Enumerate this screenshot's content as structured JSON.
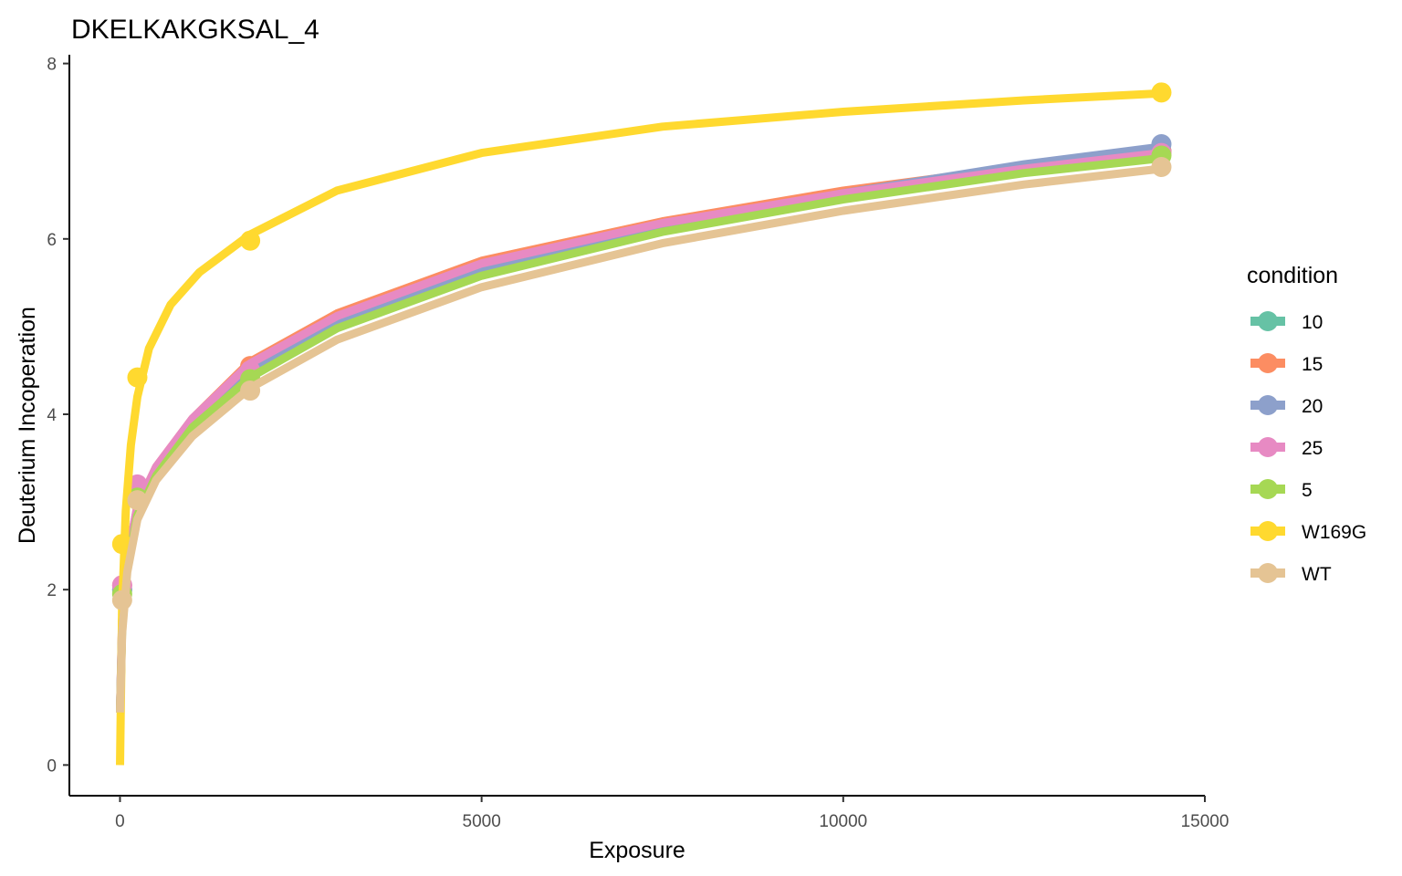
{
  "chart_data": {
    "type": "line",
    "title": "DKELKAKGKSAL_4",
    "xlabel": "Exposure",
    "ylabel": "Deuterium Incoperation",
    "xlim": [
      -700,
      15000
    ],
    "ylim": [
      -0.35,
      8.1
    ],
    "x_ticks": [
      0,
      5000,
      10000,
      15000
    ],
    "y_ticks": [
      0,
      2,
      4,
      6,
      8
    ],
    "grid": false,
    "legend": {
      "title": "condition",
      "placement": "right"
    },
    "series": [
      {
        "name": "10",
        "color": "#66C2A5",
        "points": [
          [
            30,
            2.0
          ],
          [
            240,
            3.1
          ],
          [
            1800,
            4.5
          ],
          [
            14400,
            7.0
          ]
        ],
        "curve": [
          [
            0,
            0.6
          ],
          [
            30,
            1.6
          ],
          [
            100,
            2.3
          ],
          [
            240,
            2.9
          ],
          [
            500,
            3.35
          ],
          [
            1000,
            3.9
          ],
          [
            1800,
            4.5
          ],
          [
            3000,
            5.05
          ],
          [
            5000,
            5.65
          ],
          [
            7500,
            6.15
          ],
          [
            10000,
            6.5
          ],
          [
            12500,
            6.8
          ],
          [
            14400,
            6.98
          ]
        ]
      },
      {
        "name": "15",
        "color": "#FC8D62",
        "points": [
          [
            30,
            2.05
          ],
          [
            240,
            3.15
          ],
          [
            1800,
            4.55
          ],
          [
            14400,
            7.0
          ]
        ],
        "curve": [
          [
            0,
            0.6
          ],
          [
            30,
            1.65
          ],
          [
            100,
            2.35
          ],
          [
            240,
            2.95
          ],
          [
            500,
            3.4
          ],
          [
            1000,
            3.95
          ],
          [
            1800,
            4.6
          ],
          [
            3000,
            5.15
          ],
          [
            5000,
            5.75
          ],
          [
            7500,
            6.2
          ],
          [
            10000,
            6.55
          ],
          [
            12500,
            6.82
          ],
          [
            14400,
            7.0
          ]
        ]
      },
      {
        "name": "20",
        "color": "#8DA0CB",
        "points": [
          [
            30,
            2.0
          ],
          [
            240,
            3.1
          ],
          [
            1800,
            4.45
          ],
          [
            14400,
            7.08
          ]
        ],
        "curve": [
          [
            0,
            0.6
          ],
          [
            30,
            1.6
          ],
          [
            100,
            2.3
          ],
          [
            240,
            2.9
          ],
          [
            500,
            3.35
          ],
          [
            1000,
            3.9
          ],
          [
            1800,
            4.5
          ],
          [
            3000,
            5.05
          ],
          [
            5000,
            5.65
          ],
          [
            7500,
            6.15
          ],
          [
            10000,
            6.52
          ],
          [
            12500,
            6.85
          ],
          [
            14400,
            7.05
          ]
        ]
      },
      {
        "name": "25",
        "color": "#E78AC3",
        "points": [
          [
            30,
            2.05
          ],
          [
            240,
            3.2
          ],
          [
            1800,
            4.5
          ],
          [
            14400,
            6.98
          ]
        ],
        "curve": [
          [
            0,
            0.6
          ],
          [
            30,
            1.65
          ],
          [
            100,
            2.35
          ],
          [
            240,
            2.95
          ],
          [
            500,
            3.4
          ],
          [
            1000,
            3.95
          ],
          [
            1800,
            4.58
          ],
          [
            3000,
            5.12
          ],
          [
            5000,
            5.72
          ],
          [
            7500,
            6.18
          ],
          [
            10000,
            6.52
          ],
          [
            12500,
            6.8
          ],
          [
            14400,
            6.98
          ]
        ]
      },
      {
        "name": "5",
        "color": "#A6D854",
        "points": [
          [
            30,
            1.95
          ],
          [
            240,
            3.05
          ],
          [
            1800,
            4.4
          ],
          [
            14400,
            6.95
          ]
        ],
        "curve": [
          [
            0,
            0.6
          ],
          [
            30,
            1.55
          ],
          [
            100,
            2.25
          ],
          [
            240,
            2.85
          ],
          [
            500,
            3.3
          ],
          [
            1000,
            3.85
          ],
          [
            1800,
            4.42
          ],
          [
            3000,
            4.98
          ],
          [
            5000,
            5.58
          ],
          [
            7500,
            6.08
          ],
          [
            10000,
            6.45
          ],
          [
            12500,
            6.75
          ],
          [
            14400,
            6.92
          ]
        ]
      },
      {
        "name": "W169G",
        "color": "#FFD92F",
        "points": [
          [
            30,
            2.52
          ],
          [
            240,
            4.42
          ],
          [
            1800,
            5.98
          ],
          [
            14400,
            7.67
          ]
        ],
        "curve": [
          [
            0,
            0.0
          ],
          [
            30,
            1.8
          ],
          [
            80,
            2.9
          ],
          [
            150,
            3.65
          ],
          [
            240,
            4.2
          ],
          [
            400,
            4.75
          ],
          [
            700,
            5.25
          ],
          [
            1100,
            5.62
          ],
          [
            1800,
            6.05
          ],
          [
            3000,
            6.55
          ],
          [
            5000,
            6.98
          ],
          [
            7500,
            7.28
          ],
          [
            10000,
            7.45
          ],
          [
            12500,
            7.58
          ],
          [
            14400,
            7.66
          ]
        ]
      },
      {
        "name": "WT",
        "color": "#E5C494",
        "points": [
          [
            30,
            1.88
          ],
          [
            240,
            3.02
          ],
          [
            1800,
            4.27
          ],
          [
            14400,
            6.82
          ]
        ],
        "curve": [
          [
            0,
            0.6
          ],
          [
            30,
            1.5
          ],
          [
            100,
            2.2
          ],
          [
            240,
            2.8
          ],
          [
            500,
            3.25
          ],
          [
            1000,
            3.75
          ],
          [
            1800,
            4.3
          ],
          [
            3000,
            4.85
          ],
          [
            5000,
            5.45
          ],
          [
            7500,
            5.95
          ],
          [
            10000,
            6.32
          ],
          [
            12500,
            6.62
          ],
          [
            14400,
            6.8
          ]
        ]
      }
    ]
  }
}
